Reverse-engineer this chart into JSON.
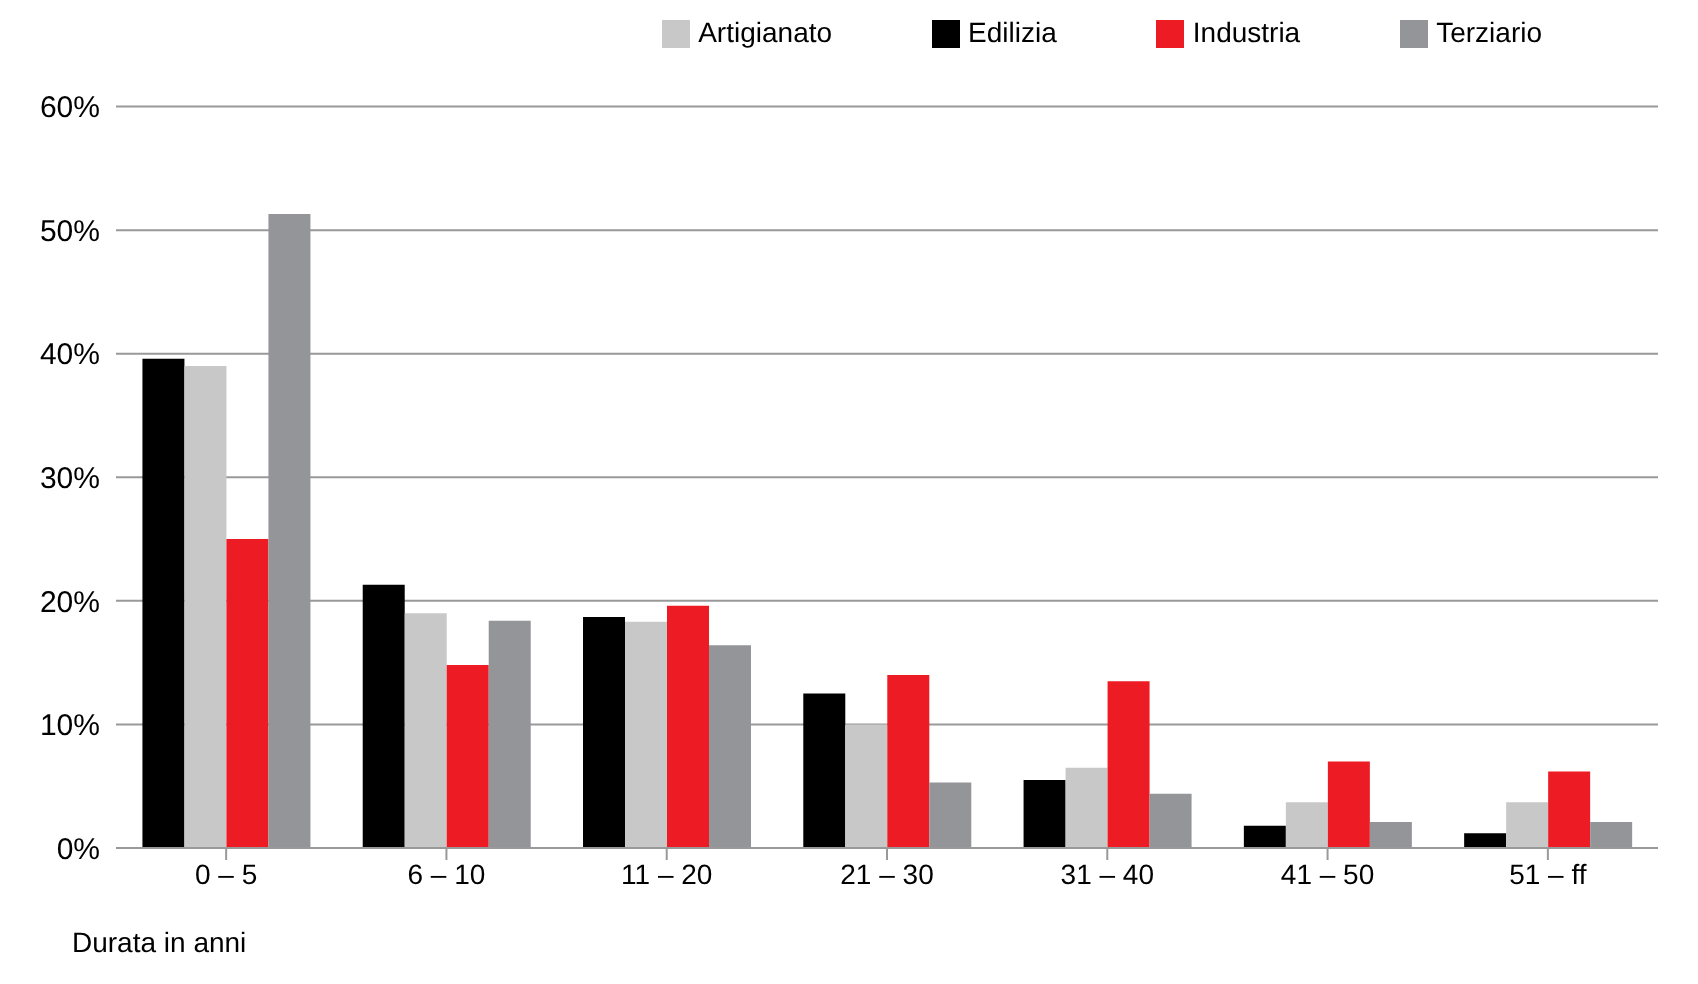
{
  "chart_data": {
    "type": "bar",
    "xlabel": "Durata in anni",
    "categories": [
      "0 – 5",
      "6 – 10",
      "11 – 20",
      "21 – 30",
      "31 – 40",
      "41 – 50",
      "51 – ff"
    ],
    "series": [
      {
        "name": "Edilizia",
        "color": "#000000",
        "values": [
          39.6,
          21.3,
          18.7,
          12.5,
          5.5,
          1.8,
          1.2
        ]
      },
      {
        "name": "Artigianato",
        "color": "#c8c8c8",
        "values": [
          39.0,
          19.0,
          18.3,
          10.0,
          6.5,
          3.7,
          3.7
        ]
      },
      {
        "name": "Industria",
        "color": "#ed1c24",
        "values": [
          25.0,
          14.8,
          19.6,
          14.0,
          13.5,
          7.0,
          6.2
        ]
      },
      {
        "name": "Terziario",
        "color": "#939598",
        "values": [
          51.3,
          18.4,
          16.4,
          5.3,
          4.4,
          2.1,
          2.1
        ]
      }
    ],
    "ylim": [
      0,
      60
    ],
    "yticks": [
      {
        "value": 0,
        "label": "0%"
      },
      {
        "value": 10,
        "label": "10%"
      },
      {
        "value": 20,
        "label": "20%"
      },
      {
        "value": 30,
        "label": "30%"
      },
      {
        "value": 40,
        "label": "40%"
      },
      {
        "value": 50,
        "label": "50%"
      },
      {
        "value": 60,
        "label": "60%"
      }
    ],
    "grid": "y",
    "legend": "top right"
  }
}
